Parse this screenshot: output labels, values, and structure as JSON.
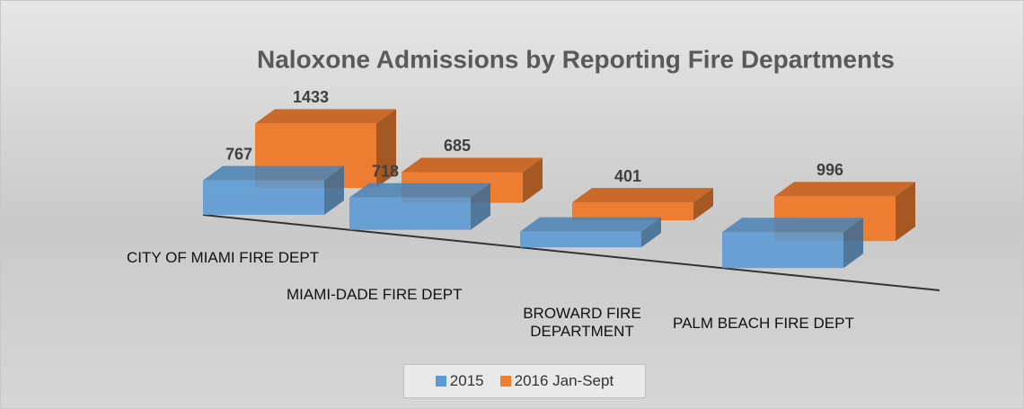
{
  "chart_data": {
    "type": "bar3d",
    "title": "Naloxone Admissions by Reporting Fire Departments",
    "categories": [
      "CITY OF MIAMI FIRE DEPT",
      "MIAMI-DADE FIRE DEPT",
      "BROWARD FIRE DEPARTMENT",
      "PALM BEACH FIRE DEPT"
    ],
    "series": [
      {
        "name": "2015",
        "color": "#5b9bd5",
        "values": [
          767,
          718,
          350,
          800
        ],
        "value_labels": [
          "767",
          "718",
          null,
          null
        ]
      },
      {
        "name": "2016 Jan-Sept",
        "color": "#ed7d31",
        "values": [
          1433,
          685,
          401,
          996
        ],
        "value_labels": [
          "1433",
          "685",
          "401",
          "996"
        ]
      }
    ],
    "legend": "bottom"
  }
}
